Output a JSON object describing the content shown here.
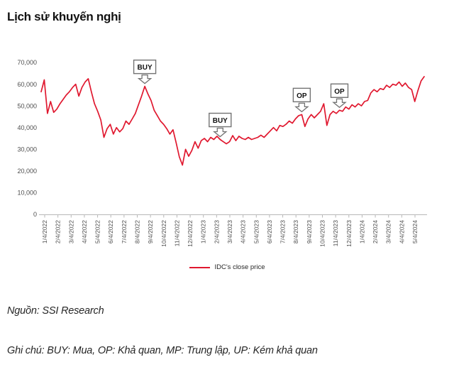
{
  "page": {
    "title": "Lịch sử khuyến nghị"
  },
  "legend": {
    "label": "IDC's close price"
  },
  "footer": {
    "source": "Nguồn: SSI Research",
    "note": "Ghi chú: BUY: Mua, OP: Khả quan, MP: Trung lập, UP: Kém khả quan"
  },
  "chart_data": {
    "type": "line",
    "title": "Lịch sử khuyến nghị",
    "xlabel": "",
    "ylabel": "",
    "ylim": [
      0,
      70000
    ],
    "y_ticks": [
      0,
      10000,
      20000,
      30000,
      40000,
      50000,
      60000,
      70000
    ],
    "grid": "off",
    "legend_position": "bottom",
    "x_tick_labels": [
      "1/4/2022",
      "2/4/2022",
      "3/4/2022",
      "4/4/2022",
      "5/4/2022",
      "6/4/2022",
      "7/4/2022",
      "8/4/2022",
      "9/4/2022",
      "10/4/2022",
      "11/4/2022",
      "12/4/2022",
      "1/4/2023",
      "2/4/2023",
      "3/4/2023",
      "4/4/2023",
      "5/4/2023",
      "6/4/2023",
      "7/4/2023",
      "8/4/2023",
      "9/4/2023",
      "10/4/2023",
      "11/4/2023",
      "12/4/2023",
      "1/4/2024",
      "2/4/2024",
      "3/4/2024",
      "4/4/2024",
      "5/4/2024"
    ],
    "series": [
      {
        "name": "IDC's close price",
        "color": "#e0182f",
        "sampling": "weekly",
        "values": [
          56500,
          62000,
          46500,
          52000,
          47000,
          48500,
          51000,
          53000,
          55000,
          56500,
          58500,
          60000,
          54500,
          58500,
          61000,
          62500,
          56500,
          51000,
          47500,
          43500,
          35500,
          39500,
          41500,
          37000,
          40000,
          38000,
          39500,
          43000,
          41500,
          44000,
          46500,
          50500,
          54500,
          59000,
          55500,
          52500,
          48000,
          45500,
          43000,
          41500,
          39500,
          37000,
          39000,
          33000,
          26500,
          22700,
          30000,
          26800,
          29500,
          33500,
          30500,
          34000,
          35000,
          33500,
          35500,
          34500,
          36000,
          34500,
          33500,
          32500,
          33500,
          36300,
          34000,
          36000,
          35000,
          34500,
          35500,
          34500,
          35000,
          35500,
          36500,
          35500,
          37000,
          38500,
          40000,
          38500,
          41000,
          40500,
          41500,
          43000,
          42000,
          44000,
          45500,
          46000,
          40500,
          44000,
          46000,
          44500,
          46000,
          47500,
          51000,
          41000,
          46000,
          47500,
          46500,
          48000,
          47500,
          49500,
          48500,
          50500,
          49500,
          51000,
          50000,
          52000,
          52500,
          56000,
          57500,
          56500,
          58000,
          57500,
          59500,
          58500,
          60000,
          59500,
          61000,
          59000,
          60500,
          58500,
          57500,
          52000,
          57000,
          61500,
          63500
        ]
      }
    ],
    "annotations": [
      {
        "label": "BUY",
        "index": 33
      },
      {
        "label": "BUY",
        "index": 57
      },
      {
        "label": "OP",
        "index": 83
      },
      {
        "label": "OP",
        "index": 95
      }
    ],
    "colors": {
      "line": "#e0182f",
      "axis": "#b8b8b8",
      "tick_text": "#4d4d4d",
      "callout_border": "#737373",
      "callout_text": "#111111"
    }
  }
}
